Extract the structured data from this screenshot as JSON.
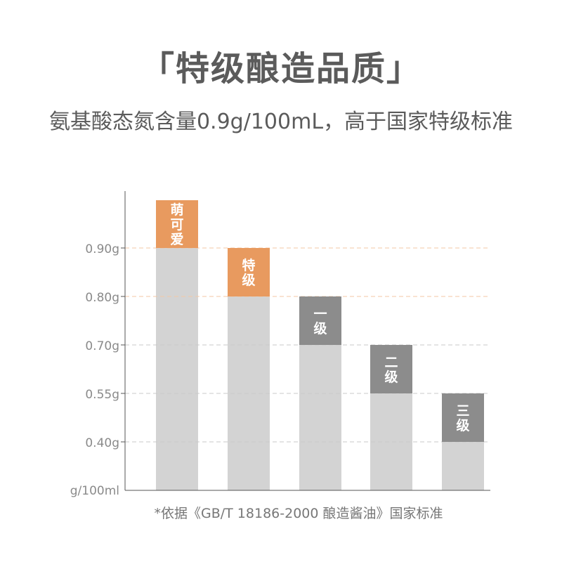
{
  "header": {
    "title": "「特级酿造品质」",
    "subtitle": "氨基酸态氮含量0.9g/100mL，高于国家特级标准"
  },
  "footnote": "*依据《GB/T 18186-2000 酿造酱油》国家标准",
  "colors": {
    "bar": "#d3d3d3",
    "orange_cap": "#e89a5f",
    "gray_cap": "#8c8c8c",
    "orange_grid": "#f3c7a6",
    "gray_grid": "#c9c9c9",
    "axis": "#555555",
    "tick_text": "#8a8a8a",
    "title_text": "#5b5b5b"
  },
  "chart_data": {
    "type": "bar",
    "categories": [
      "萌可爱",
      "特级",
      "一级",
      "二级",
      "三级"
    ],
    "values": [
      0.9,
      0.8,
      0.7,
      0.55,
      0.4
    ],
    "cap_top": [
      1.0,
      0.9,
      0.8,
      0.7,
      0.55
    ],
    "cap_style": [
      "orange",
      "orange",
      "gray",
      "gray",
      "gray"
    ],
    "cap_lines": [
      [
        "萌",
        "可",
        "爱"
      ],
      [
        "特",
        "级"
      ],
      [
        "一",
        "级"
      ],
      [
        "二",
        "级"
      ],
      [
        "三",
        "级"
      ]
    ],
    "y_ticks": [
      {
        "value": 0.9,
        "label": "0.90g",
        "style": "orange"
      },
      {
        "value": 0.8,
        "label": "0.80g",
        "style": "orange"
      },
      {
        "value": 0.7,
        "label": "0.70g",
        "style": "gray"
      },
      {
        "value": 0.55,
        "label": "0.55g",
        "style": "gray"
      },
      {
        "value": 0.4,
        "label": "0.40g",
        "style": "gray"
      }
    ],
    "y_unit_label": "g/100ml",
    "title": "",
    "xlabel": "",
    "ylabel": "",
    "grid": true,
    "legend": "none"
  }
}
